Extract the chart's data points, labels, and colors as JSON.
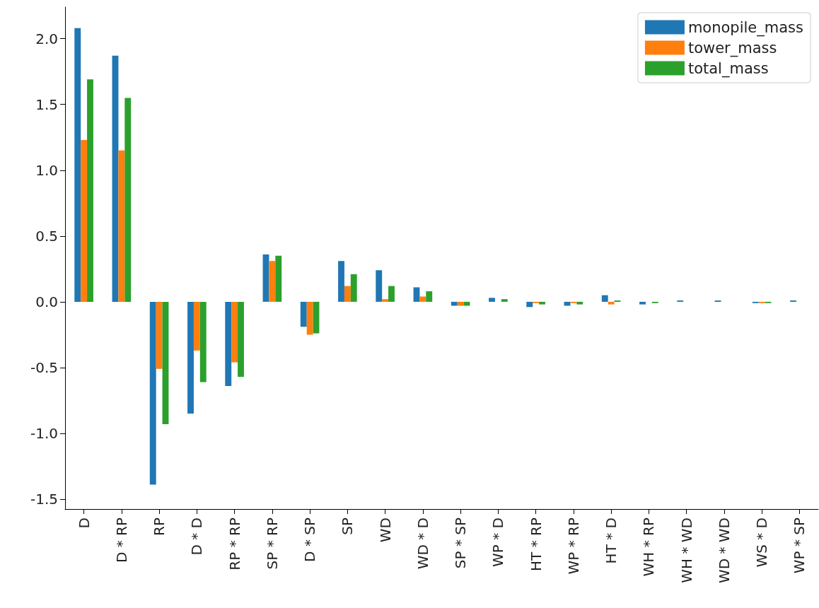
{
  "chart_data": {
    "type": "bar",
    "categories": [
      "D",
      "D * RP",
      "RP",
      "D * D",
      "RP * RP",
      "SP * RP",
      "D * SP",
      "SP",
      "WD",
      "WD * D",
      "SP * SP",
      "WP * D",
      "HT * RP",
      "WP * RP",
      "HT * D",
      "WH * RP",
      "WH * WD",
      "WD * WD",
      "WS * D",
      "WP * SP"
    ],
    "series": [
      {
        "name": "monopile_mass",
        "color": "#1f77b4",
        "values": [
          2.08,
          1.87,
          -1.39,
          -0.85,
          -0.64,
          0.36,
          -0.19,
          0.31,
          0.24,
          0.11,
          -0.03,
          0.03,
          -0.04,
          -0.03,
          0.05,
          -0.02,
          0.01,
          0.01,
          -0.01,
          0.01
        ]
      },
      {
        "name": "tower_mass",
        "color": "#ff7f0e",
        "values": [
          1.23,
          1.15,
          -0.51,
          -0.37,
          -0.46,
          0.31,
          -0.25,
          0.12,
          0.02,
          0.04,
          -0.03,
          0,
          -0.01,
          -0.01,
          -0.02,
          0,
          0,
          0,
          -0.01,
          0
        ]
      },
      {
        "name": "total_mass",
        "color": "#2ca02c",
        "values": [
          1.69,
          1.55,
          -0.93,
          -0.61,
          -0.57,
          0.35,
          -0.24,
          0.21,
          0.12,
          0.08,
          -0.03,
          0.02,
          -0.02,
          -0.02,
          0.01,
          -0.01,
          0,
          0,
          -0.01,
          0
        ]
      }
    ],
    "ylim": [
      -1.575,
      2.24
    ],
    "yticks": [
      {
        "value": -1.5,
        "label": "-1.5"
      },
      {
        "value": -1.0,
        "label": "-1.0"
      },
      {
        "value": -0.5,
        "label": "-0.5"
      },
      {
        "value": 0,
        "label": "0.0"
      },
      {
        "value": 0.5,
        "label": "0.5"
      },
      {
        "value": 1.0,
        "label": "1.0"
      },
      {
        "value": 1.5,
        "label": "1.5"
      },
      {
        "value": 2.0,
        "label": "2.0"
      }
    ],
    "legend": "top right",
    "grid": false
  }
}
